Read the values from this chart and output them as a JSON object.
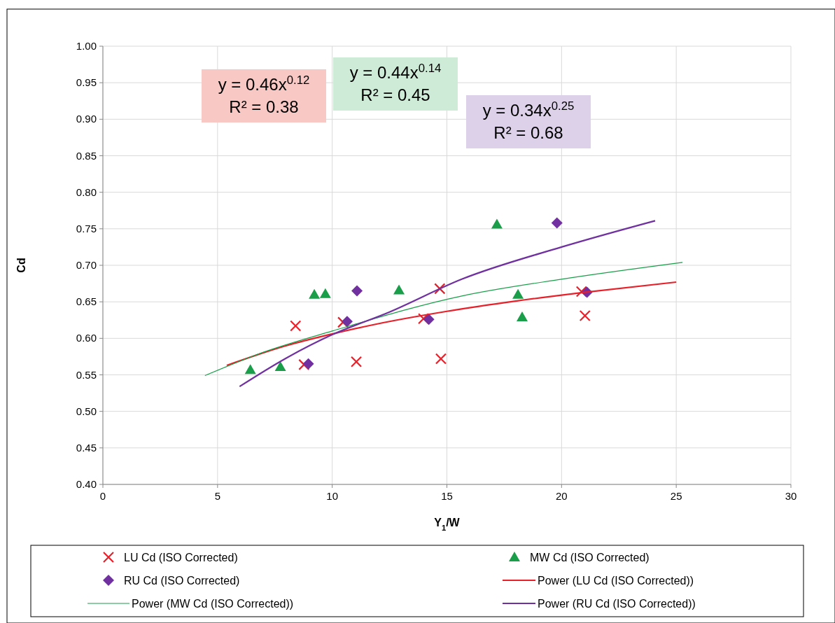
{
  "chart_data": {
    "type": "scatter",
    "xlabel": "Y$_{1}$/W",
    "ylabel": "Cd",
    "xlim": [
      0,
      30
    ],
    "xticks": [
      0,
      5,
      10,
      15,
      20,
      25,
      30
    ],
    "ylim": [
      0.4,
      1.0
    ],
    "yticks": [
      {
        "value": 0.4,
        "label": "0.40"
      },
      {
        "value": 0.45,
        "label": "0.45"
      },
      {
        "value": 0.5,
        "label": "0.50"
      },
      {
        "value": 0.55,
        "label": "0.55"
      },
      {
        "value": 0.6,
        "label": "0.60"
      },
      {
        "value": 0.65,
        "label": "0.65"
      },
      {
        "value": 0.7,
        "label": "0.70"
      },
      {
        "value": 0.75,
        "label": "0.75"
      },
      {
        "value": 0.8,
        "label": "0.80"
      },
      {
        "value": 0.85,
        "label": "0.85"
      },
      {
        "value": 0.9,
        "label": "0.90"
      },
      {
        "value": 0.95,
        "label": "0.95"
      },
      {
        "value": 1.0,
        "label": "1.00"
      }
    ],
    "grid": true,
    "legend": "bottom",
    "series": [
      {
        "name": "LU Cd (ISO Corrected)",
        "marker": "cross",
        "color": "#e8202a",
        "x": [
          8.4,
          8.77,
          11.05,
          10.47,
          13.98,
          14.69,
          14.74,
          21.02,
          20.87
        ],
        "values": [
          0.617,
          0.564,
          0.568,
          0.622,
          0.627,
          0.668,
          0.572,
          0.631,
          0.664
        ]
      },
      {
        "name": "MW Cd (ISO Corrected)",
        "marker": "triangle",
        "color": "#1a9e4a",
        "x": [
          6.43,
          7.74,
          9.22,
          9.7,
          12.91,
          17.18,
          18.1,
          18.28
        ],
        "values": [
          0.557,
          0.561,
          0.66,
          0.661,
          0.666,
          0.756,
          0.66,
          0.629
        ]
      },
      {
        "name": "RU Cd (ISO Corrected)",
        "marker": "diamond",
        "color": "#7030a0",
        "x": [
          8.96,
          10.65,
          11.08,
          14.21,
          19.8,
          21.11
        ],
        "values": [
          0.565,
          0.623,
          0.665,
          0.626,
          0.758,
          0.663
        ]
      },
      {
        "name": "Power (LU Cd (ISO Corrected))",
        "type": "line",
        "marker": "none",
        "color": "#e8202a",
        "x": [
          5.4,
          8,
          10,
          12,
          15,
          18,
          21,
          25
        ],
        "values": [
          0.563,
          0.59,
          0.606,
          0.62,
          0.637,
          0.651,
          0.663,
          0.677
        ]
      },
      {
        "name": "Power (MW Cd (ISO Corrected))",
        "type": "line",
        "marker": "none",
        "color": "#1a9e4a",
        "x": [
          4.45,
          7,
          10,
          15.65,
          20,
          25.27
        ],
        "values": [
          0.549,
          0.581,
          0.61,
          0.658,
          0.681,
          0.704
        ]
      },
      {
        "name": "Power (RU Cd (ISO Corrected))",
        "type": "line",
        "marker": "none",
        "color": "#7030a0",
        "x": [
          5.96,
          8,
          10,
          12.5,
          15.65,
          20,
          24.08
        ],
        "values": [
          0.534,
          0.573,
          0.605,
          0.636,
          0.681,
          0.725,
          0.761
        ]
      }
    ],
    "annotations": [
      "y = 0.46x$^{0.12}$\nR² = 0.38",
      "y = 0.44x$^{0.14}$\nR² = 0.45",
      "y = 0.34x$^{0.25}$\nR² = 0.68"
    ]
  }
}
